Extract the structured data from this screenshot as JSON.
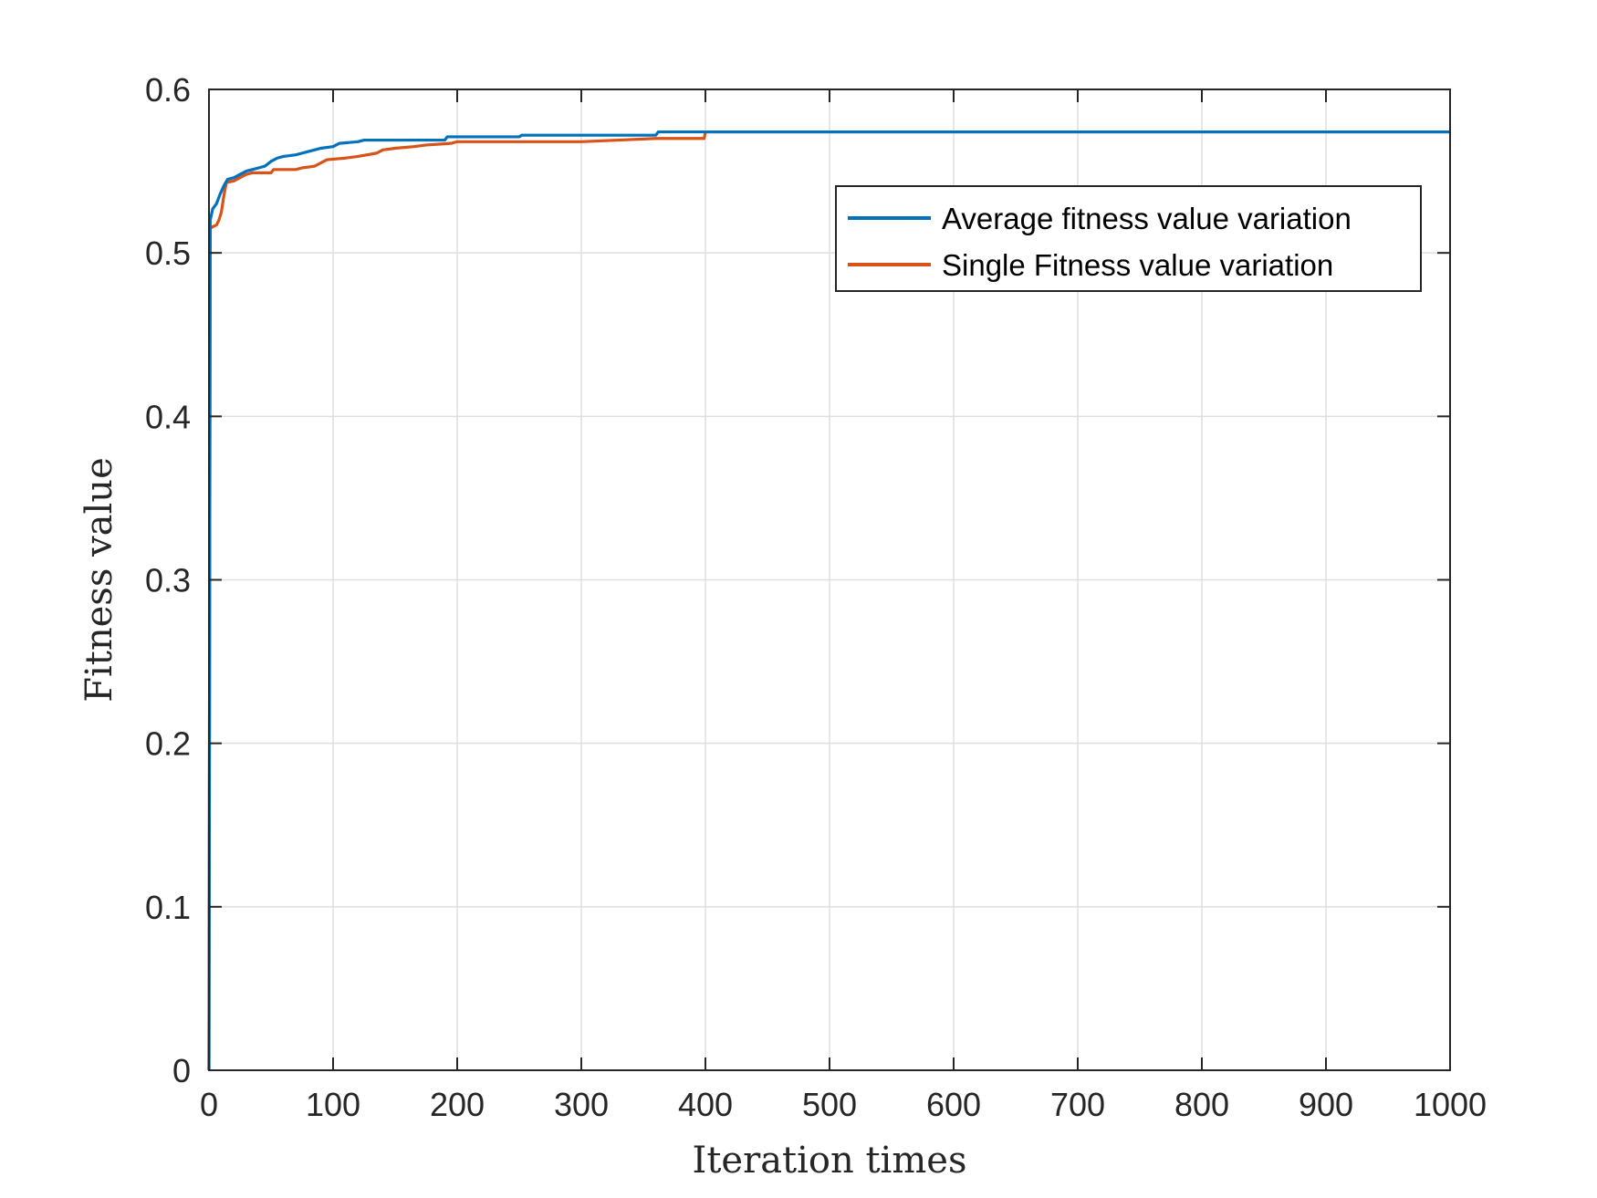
{
  "chart_data": {
    "type": "line",
    "title": "",
    "xlabel": "Iteration times",
    "ylabel": "Fitness value",
    "xlim": [
      0,
      1000
    ],
    "ylim": [
      0,
      0.6
    ],
    "x_ticks": [
      0,
      100,
      200,
      300,
      400,
      500,
      600,
      700,
      800,
      900,
      1000
    ],
    "x_tick_labels": [
      "0",
      "100",
      "200",
      "300",
      "400",
      "500",
      "600",
      "700",
      "800",
      "900",
      "1000"
    ],
    "y_ticks": [
      0,
      0.1,
      0.2,
      0.3,
      0.4,
      0.5,
      0.6
    ],
    "y_tick_labels": [
      "0",
      "0.1",
      "0.2",
      "0.3",
      "0.4",
      "0.5",
      "0.6"
    ],
    "grid": true,
    "legend_position": "top-right",
    "series": [
      {
        "name": "Average fitness value variation",
        "color": "#0072BD",
        "points": [
          [
            0,
            0
          ],
          [
            1,
            0.52
          ],
          [
            3,
            0.527
          ],
          [
            6,
            0.53
          ],
          [
            9,
            0.536
          ],
          [
            12,
            0.541
          ],
          [
            15,
            0.545
          ],
          [
            20,
            0.546
          ],
          [
            25,
            0.548
          ],
          [
            30,
            0.55
          ],
          [
            35,
            0.551
          ],
          [
            40,
            0.552
          ],
          [
            45,
            0.553
          ],
          [
            50,
            0.556
          ],
          [
            55,
            0.558
          ],
          [
            60,
            0.559
          ],
          [
            70,
            0.56
          ],
          [
            75,
            0.561
          ],
          [
            80,
            0.562
          ],
          [
            85,
            0.563
          ],
          [
            90,
            0.564
          ],
          [
            100,
            0.565
          ],
          [
            105,
            0.567
          ],
          [
            120,
            0.568
          ],
          [
            125,
            0.569
          ],
          [
            190,
            0.569
          ],
          [
            192,
            0.571
          ],
          [
            250,
            0.571
          ],
          [
            252,
            0.572
          ],
          [
            360,
            0.572
          ],
          [
            362,
            0.574
          ],
          [
            1000,
            0.574
          ]
        ]
      },
      {
        "name": "Single Fitness value variation",
        "color": "#D95319",
        "points": [
          [
            0,
            0
          ],
          [
            1,
            0.515
          ],
          [
            3,
            0.516
          ],
          [
            6,
            0.517
          ],
          [
            8,
            0.52
          ],
          [
            10,
            0.525
          ],
          [
            12,
            0.535
          ],
          [
            14,
            0.543
          ],
          [
            20,
            0.544
          ],
          [
            25,
            0.546
          ],
          [
            30,
            0.548
          ],
          [
            35,
            0.549
          ],
          [
            50,
            0.549
          ],
          [
            52,
            0.551
          ],
          [
            70,
            0.551
          ],
          [
            75,
            0.552
          ],
          [
            85,
            0.553
          ],
          [
            90,
            0.555
          ],
          [
            95,
            0.557
          ],
          [
            110,
            0.558
          ],
          [
            120,
            0.559
          ],
          [
            135,
            0.561
          ],
          [
            140,
            0.563
          ],
          [
            150,
            0.564
          ],
          [
            165,
            0.565
          ],
          [
            175,
            0.566
          ],
          [
            195,
            0.567
          ],
          [
            200,
            0.568
          ],
          [
            300,
            0.568
          ],
          [
            330,
            0.569
          ],
          [
            360,
            0.57
          ],
          [
            399,
            0.57
          ],
          [
            400,
            0.574
          ],
          [
            1000,
            0.574
          ]
        ]
      }
    ]
  }
}
